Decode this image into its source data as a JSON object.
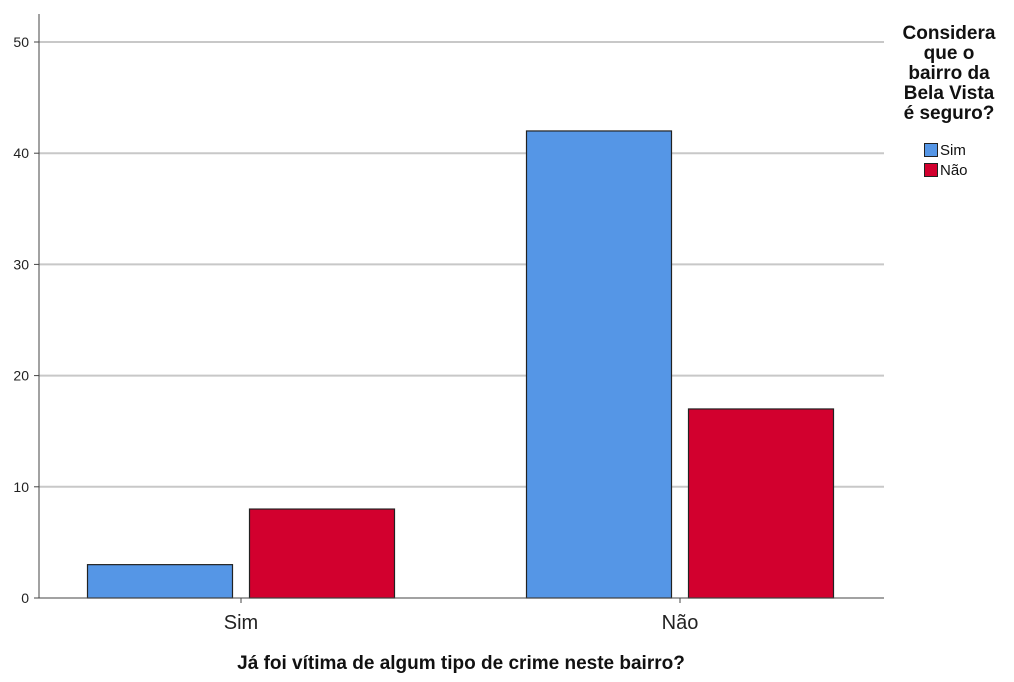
{
  "chart_data": {
    "type": "bar",
    "title": "",
    "xlabel": "Já foi vítima de algum tipo de crime neste bairro?",
    "ylabel": "",
    "categories": [
      "Sim",
      "Não"
    ],
    "series": [
      {
        "name": "Sim",
        "values": [
          3,
          42
        ],
        "color": "#5596e6"
      },
      {
        "name": "Não",
        "values": [
          8,
          17
        ],
        "color": "#d2002e"
      }
    ],
    "ylim": [
      0,
      50
    ],
    "yticks": [
      0,
      10,
      20,
      30,
      40,
      50
    ],
    "grid": true,
    "legend": {
      "title": "Considera\nque o\nbairro da\nBela Vista\né seguro?",
      "placement": "top-right"
    }
  }
}
